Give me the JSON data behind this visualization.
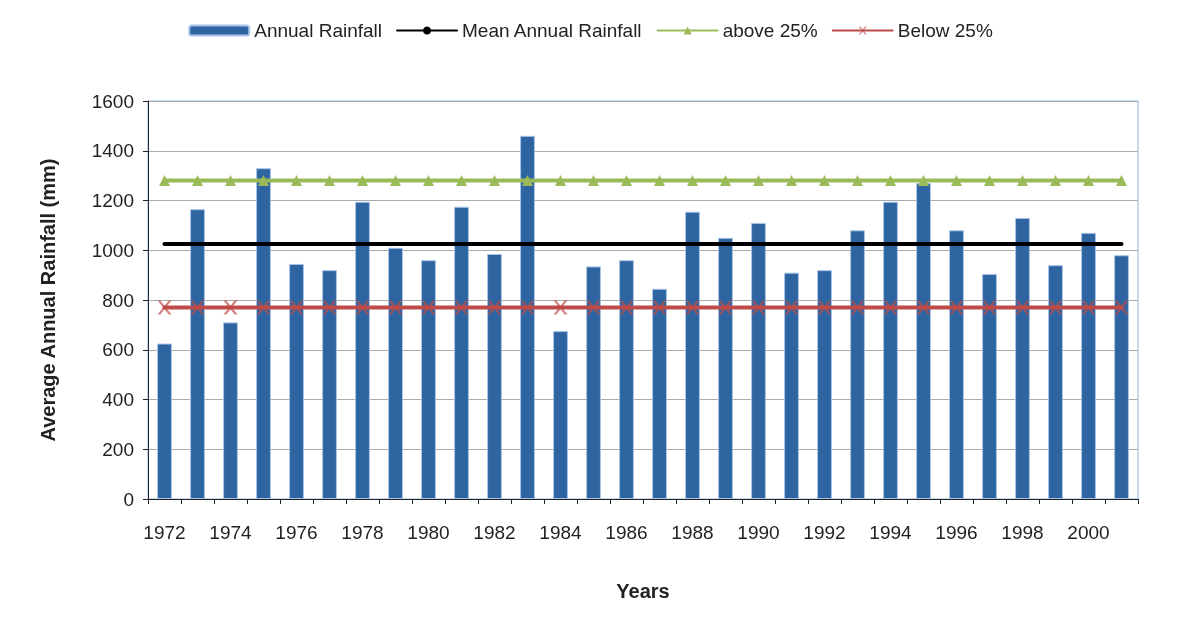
{
  "chart_data": {
    "type": "bar",
    "xlabel": "Years",
    "ylabel": "Average Annual Rainfall (mm)",
    "categories": [
      "1972",
      null,
      "1974",
      null,
      "1976",
      null,
      "1978",
      null,
      "1980",
      null,
      "1982",
      null,
      "1984",
      null,
      "1986",
      null,
      "1988",
      null,
      "1990",
      null,
      "1992",
      null,
      "1994",
      null,
      "1996",
      null,
      "1998",
      null,
      "2000",
      null
    ],
    "series": [
      {
        "name": "Annual Rainfall",
        "color": "#2e64a0",
        "values": [
          625,
          1165,
          710,
          1330,
          945,
          920,
          1195,
          1010,
          960,
          1175,
          985,
          1460,
          675,
          935,
          960,
          845,
          1155,
          1050,
          1110,
          910,
          920,
          1080,
          1195,
          1270,
          1080,
          905,
          1130,
          940,
          1070,
          980
        ]
      },
      {
        "name": "Mean Annual Rainfall",
        "type": "line",
        "color": "#000000",
        "marker": "none",
        "values": [
          1025,
          1025,
          1025,
          1025,
          1025,
          1025,
          1025,
          1025,
          1025,
          1025,
          1025,
          1025,
          1025,
          1025,
          1025,
          1025,
          1025,
          1025,
          1025,
          1025,
          1025,
          1025,
          1025,
          1025,
          1025,
          1025,
          1025,
          1025,
          1025,
          1025
        ]
      },
      {
        "name": "above 25%",
        "type": "line",
        "color": "#9bbb59",
        "marker": "triangle",
        "values": [
          1280,
          1280,
          1280,
          1280,
          1280,
          1280,
          1280,
          1280,
          1280,
          1280,
          1280,
          1280,
          1280,
          1280,
          1280,
          1280,
          1280,
          1280,
          1280,
          1280,
          1280,
          1280,
          1280,
          1280,
          1280,
          1280,
          1280,
          1280,
          1280,
          1280
        ]
      },
      {
        "name": "Below 25%",
        "type": "line",
        "color": "#be4b48",
        "marker": "cross",
        "values": [
          770,
          770,
          770,
          770,
          770,
          770,
          770,
          770,
          770,
          770,
          770,
          770,
          770,
          770,
          770,
          770,
          770,
          770,
          770,
          770,
          770,
          770,
          770,
          770,
          770,
          770,
          770,
          770,
          770,
          770
        ]
      }
    ],
    "ylim": [
      0,
      1600
    ],
    "yticks": [
      0,
      200,
      400,
      600,
      800,
      1000,
      1200,
      1400,
      1600
    ],
    "grid": "y",
    "legend": "top"
  }
}
